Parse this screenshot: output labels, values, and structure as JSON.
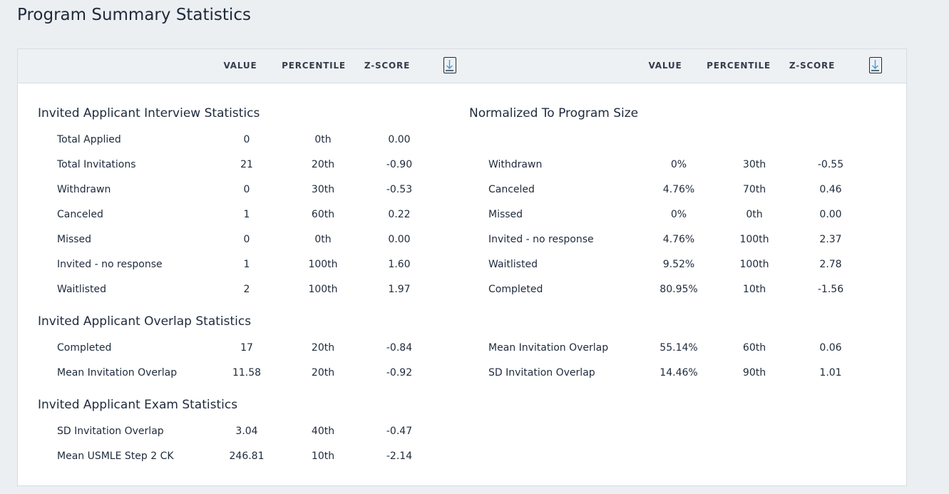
{
  "page": {
    "title": "Program Summary Statistics"
  },
  "header": {
    "left": [
      "VALUE",
      "PERCENTILE",
      "Z-SCORE"
    ],
    "right": [
      "VALUE",
      "PERCENTILE",
      "Z-SCORE"
    ]
  },
  "left": {
    "sections": [
      {
        "title": "Invited Applicant Interview Statistics",
        "rows": [
          [
            "Total Applied",
            "0",
            "0th",
            "0.00"
          ],
          [
            "Total Invitations",
            "21",
            "20th",
            "-0.90"
          ],
          [
            "Withdrawn",
            "0",
            "30th",
            "-0.53"
          ],
          [
            "Canceled",
            "1",
            "60th",
            "0.22"
          ],
          [
            "Missed",
            "0",
            "0th",
            "0.00"
          ],
          [
            "Invited - no response",
            "1",
            "100th",
            "1.60"
          ],
          [
            "Waitlisted",
            "2",
            "100th",
            "1.97"
          ]
        ]
      },
      {
        "title": "Invited Applicant Overlap Statistics",
        "rows": [
          [
            "Completed",
            "17",
            "20th",
            "-0.84"
          ],
          [
            "Mean Invitation Overlap",
            "11.58",
            "20th",
            "-0.92"
          ]
        ]
      },
      {
        "title": "Invited Applicant Exam Statistics",
        "rows": [
          [
            "SD Invitation Overlap",
            "3.04",
            "40th",
            "-0.47"
          ],
          [
            "Mean USMLE Step 2 CK",
            "246.81",
            "10th",
            "-2.14"
          ]
        ]
      }
    ]
  },
  "right": {
    "sections": [
      {
        "title": "Normalized To Program Size",
        "rows": [
          [
            "Withdrawn",
            "0%",
            "30th",
            "-0.55"
          ],
          [
            "Canceled",
            "4.76%",
            "70th",
            "0.46"
          ],
          [
            "Missed",
            "0%",
            "0th",
            "0.00"
          ],
          [
            "Invited - no response",
            "4.76%",
            "100th",
            "2.37"
          ],
          [
            "Waitlisted",
            "9.52%",
            "100th",
            "2.78"
          ],
          [
            "Completed",
            "80.95%",
            "10th",
            "-1.56"
          ]
        ]
      },
      {
        "rows": [
          [
            "Mean Invitation Overlap",
            "55.14%",
            "60th",
            "0.06"
          ],
          [
            "SD Invitation Overlap",
            "14.46%",
            "90th",
            "1.01"
          ]
        ]
      }
    ]
  }
}
